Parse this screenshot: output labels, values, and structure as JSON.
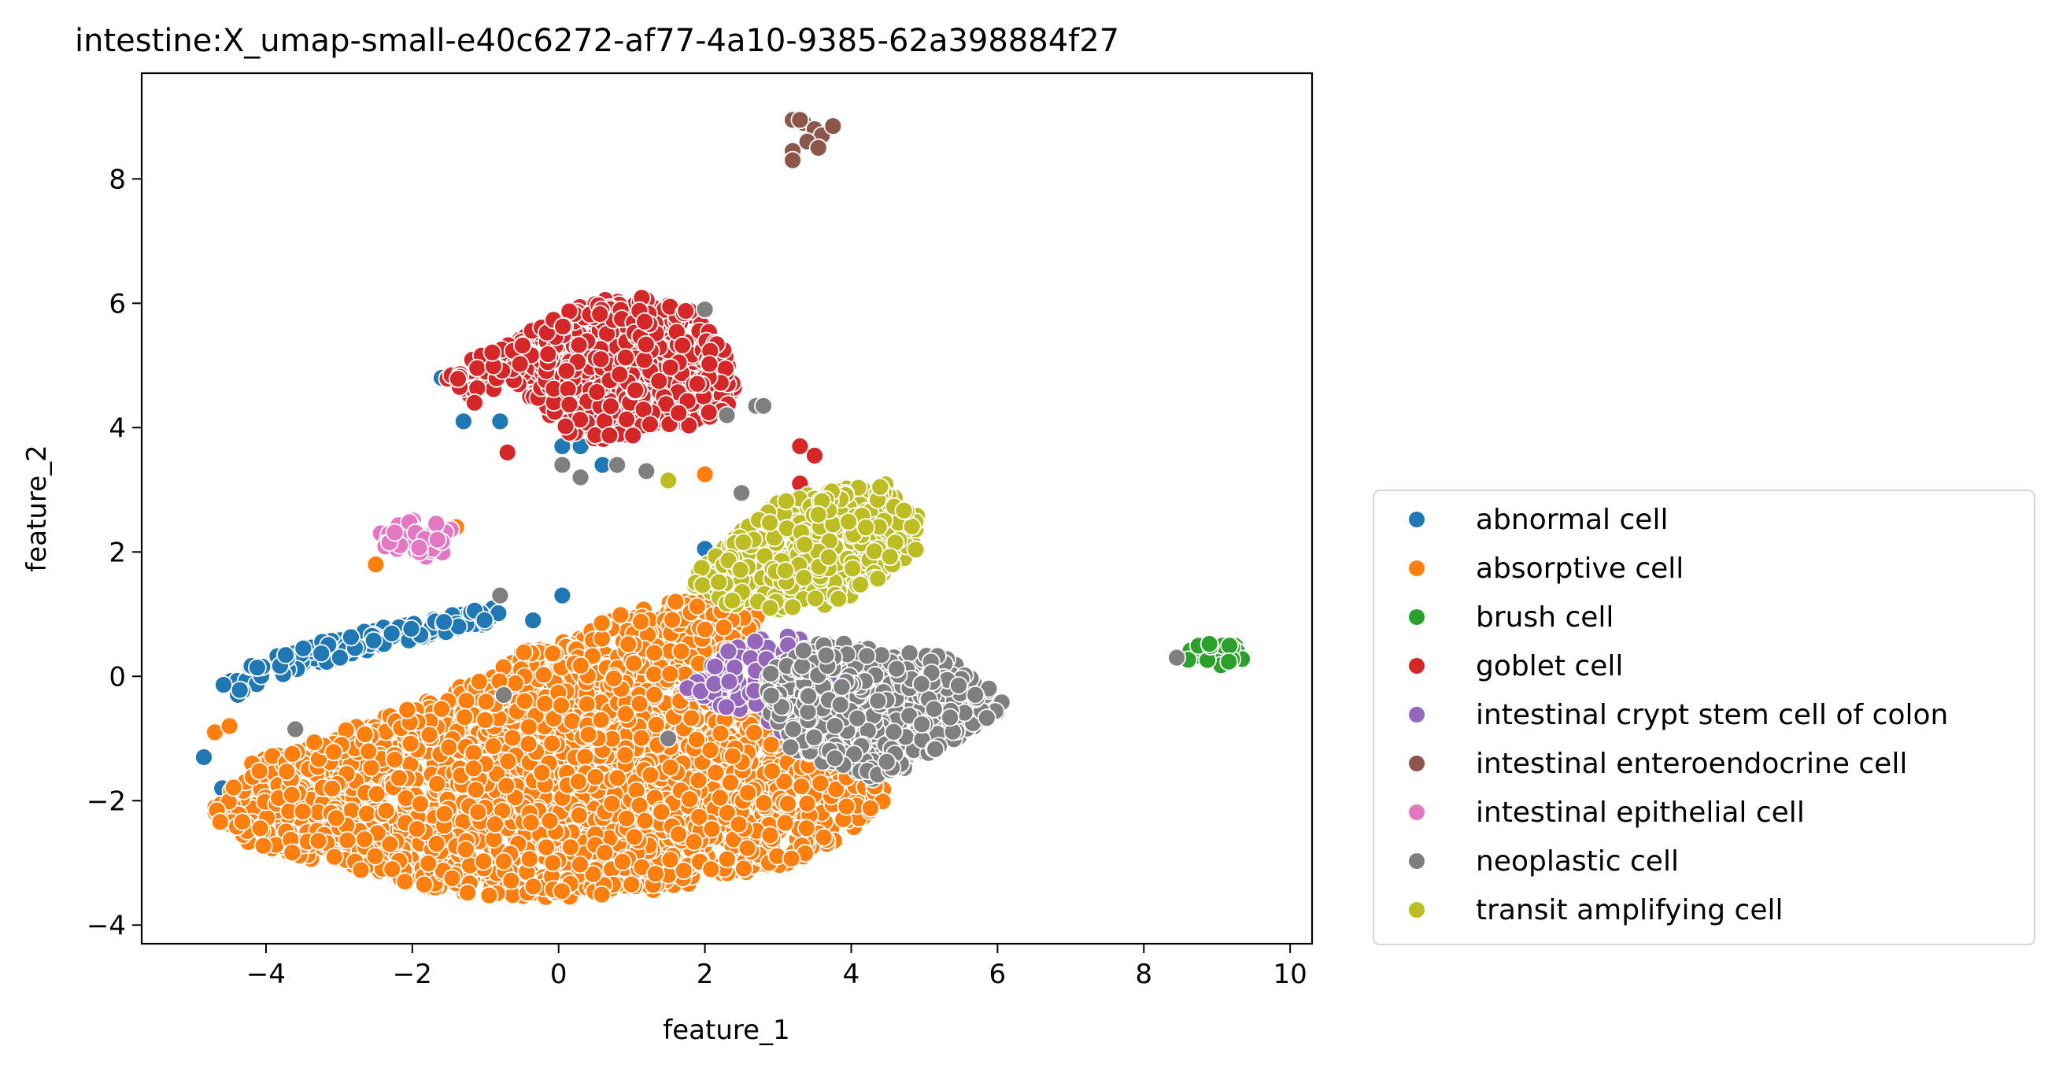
{
  "chart_data": {
    "type": "scatter",
    "title": "intestine:X_umap-small-e40c6272-af77-4a10-9385-62a398884f27",
    "xlabel": "feature_1",
    "ylabel": "feature_2",
    "xlim": [
      -5.7,
      10.3
    ],
    "ylim": [
      -4.3,
      9.7
    ],
    "xticks": [
      -4,
      -2,
      0,
      2,
      4,
      6,
      8,
      10
    ],
    "xtick_labels": [
      "−4",
      "−2",
      "0",
      "2",
      "4",
      "6",
      "8",
      "10"
    ],
    "yticks": [
      -4,
      -2,
      0,
      2,
      4,
      6,
      8
    ],
    "ytick_labels": [
      "−4",
      "−2",
      "0",
      "2",
      "4",
      "6",
      "8"
    ],
    "grid": false,
    "legend_position": "outside-right",
    "series": [
      {
        "name": "abnormal cell",
        "color": "#1f77b4",
        "regions": [
          {
            "kind": "arc",
            "n": 140,
            "x": [
              -4.7,
              -0.8
            ],
            "y0": -0.6,
            "y1": 1.0,
            "spread": 0.35
          },
          {
            "kind": "points",
            "points": [
              [
                -4.85,
                -1.3
              ],
              [
                -4.6,
                -1.8
              ],
              [
                -1.3,
                4.1
              ],
              [
                -0.8,
                4.1
              ],
              [
                -1.6,
                4.8
              ],
              [
                0.05,
                3.7
              ],
              [
                0.3,
                3.7
              ],
              [
                0.05,
                1.3
              ],
              [
                -0.35,
                0.9
              ],
              [
                2.0,
                2.05
              ],
              [
                0.6,
                3.4
              ]
            ]
          }
        ]
      },
      {
        "name": "absorptive cell",
        "color": "#ff7f0e",
        "regions": [
          {
            "kind": "poly",
            "n": 2400,
            "poly": [
              [
                -4.7,
                -2.0
              ],
              [
                -4.2,
                -1.4
              ],
              [
                -3.0,
                -0.9
              ],
              [
                -2.0,
                -0.5
              ],
              [
                -1.0,
                0.0
              ],
              [
                -0.6,
                0.4
              ],
              [
                0.2,
                0.6
              ],
              [
                0.8,
                1.0
              ],
              [
                1.8,
                1.25
              ],
              [
                2.5,
                1.3
              ],
              [
                2.8,
                0.9
              ],
              [
                2.4,
                0.3
              ],
              [
                2.5,
                -0.5
              ],
              [
                3.2,
                -0.9
              ],
              [
                3.7,
                -1.2
              ],
              [
                4.3,
                -1.6
              ],
              [
                4.6,
                -1.9
              ],
              [
                4.0,
                -2.5
              ],
              [
                3.2,
                -3.0
              ],
              [
                2.0,
                -3.3
              ],
              [
                0.8,
                -3.55
              ],
              [
                -0.5,
                -3.6
              ],
              [
                -1.8,
                -3.4
              ],
              [
                -3.2,
                -3.0
              ],
              [
                -4.2,
                -2.7
              ],
              [
                -4.7,
                -2.3
              ]
            ]
          },
          {
            "kind": "points",
            "points": [
              [
                2.0,
                3.25
              ],
              [
                -1.4,
                2.4
              ],
              [
                -2.5,
                1.8
              ],
              [
                3.6,
                1.5
              ],
              [
                -4.7,
                -0.9
              ],
              [
                -4.5,
                -0.8
              ],
              [
                1.6,
                1.2
              ]
            ]
          }
        ]
      },
      {
        "name": "brush cell",
        "color": "#2ca02c",
        "regions": [
          {
            "kind": "blob",
            "n": 24,
            "cx": 9.0,
            "cy": 0.35,
            "rx": 0.45,
            "ry": 0.18
          }
        ]
      },
      {
        "name": "goblet cell",
        "color": "#d62728",
        "regions": [
          {
            "kind": "poly",
            "n": 650,
            "poly": [
              [
                -1.6,
                4.8
              ],
              [
                -1.2,
                5.1
              ],
              [
                -0.6,
                5.4
              ],
              [
                0.0,
                5.8
              ],
              [
                0.5,
                6.05
              ],
              [
                1.2,
                6.1
              ],
              [
                1.8,
                5.9
              ],
              [
                2.3,
                5.2
              ],
              [
                2.5,
                4.7
              ],
              [
                2.3,
                4.3
              ],
              [
                1.8,
                4.0
              ],
              [
                1.2,
                3.9
              ],
              [
                0.6,
                3.8
              ],
              [
                0.1,
                3.9
              ],
              [
                -0.2,
                4.3
              ],
              [
                -0.6,
                4.7
              ],
              [
                -1.3,
                4.4
              ]
            ]
          },
          {
            "kind": "points",
            "points": [
              [
                -1.15,
                4.4
              ],
              [
                -0.7,
                3.6
              ],
              [
                3.3,
                3.7
              ],
              [
                3.5,
                3.55
              ],
              [
                3.3,
                3.1
              ]
            ]
          }
        ]
      },
      {
        "name": "intestinal crypt stem cell of colon",
        "color": "#9467bd",
        "regions": [
          {
            "kind": "poly",
            "n": 130,
            "poly": [
              [
                1.7,
                -0.2
              ],
              [
                2.2,
                0.45
              ],
              [
                2.9,
                0.7
              ],
              [
                3.4,
                0.6
              ],
              [
                3.9,
                0.3
              ],
              [
                4.0,
                -0.3
              ],
              [
                3.8,
                -0.9
              ],
              [
                3.3,
                -1.1
              ],
              [
                2.6,
                -0.6
              ],
              [
                2.0,
                -0.5
              ]
            ]
          },
          {
            "kind": "points",
            "points": [
              [
                3.7,
                1.2
              ],
              [
                3.6,
                -1.35
              ]
            ]
          }
        ]
      },
      {
        "name": "intestinal enteroendocrine cell",
        "color": "#8c564b",
        "regions": [
          {
            "kind": "points",
            "points": [
              [
                3.2,
                8.95
              ],
              [
                3.35,
                8.9
              ],
              [
                3.5,
                8.8
              ],
              [
                3.6,
                8.7
              ],
              [
                3.75,
                8.85
              ],
              [
                3.4,
                8.6
              ],
              [
                3.55,
                8.5
              ],
              [
                3.2,
                8.45
              ],
              [
                3.2,
                8.3
              ],
              [
                3.3,
                8.95
              ]
            ]
          }
        ]
      },
      {
        "name": "intestinal epithelial cell",
        "color": "#e377c2",
        "regions": [
          {
            "kind": "blob",
            "n": 45,
            "cx": -1.95,
            "cy": 2.2,
            "rx": 0.55,
            "ry": 0.32
          }
        ]
      },
      {
        "name": "neoplastic cell",
        "color": "#7f7f7f",
        "regions": [
          {
            "kind": "poly",
            "n": 600,
            "poly": [
              [
                3.0,
                0.2
              ],
              [
                3.6,
                0.6
              ],
              [
                4.1,
                0.5
              ],
              [
                4.7,
                0.4
              ],
              [
                5.4,
                0.3
              ],
              [
                5.9,
                -0.1
              ],
              [
                6.1,
                -0.5
              ],
              [
                5.6,
                -0.9
              ],
              [
                5.0,
                -1.3
              ],
              [
                4.4,
                -1.7
              ],
              [
                3.8,
                -1.5
              ],
              [
                3.2,
                -1.2
              ],
              [
                2.9,
                -0.6
              ],
              [
                2.8,
                -0.1
              ]
            ]
          },
          {
            "kind": "points",
            "points": [
              [
                2.0,
                5.9
              ],
              [
                2.7,
                4.35
              ],
              [
                2.8,
                4.35
              ],
              [
                0.05,
                3.4
              ],
              [
                0.3,
                3.2
              ],
              [
                0.8,
                3.4
              ],
              [
                1.2,
                3.3
              ],
              [
                2.5,
                2.95
              ],
              [
                -0.8,
                1.3
              ],
              [
                -0.75,
                -0.3
              ],
              [
                -3.6,
                -0.85
              ],
              [
                8.45,
                0.3
              ],
              [
                1.5,
                -1.0
              ],
              [
                2.3,
                4.2
              ]
            ]
          }
        ]
      },
      {
        "name": "transit amplifying cell",
        "color": "#bcbd22",
        "regions": [
          {
            "kind": "poly",
            "n": 420,
            "poly": [
              [
                1.8,
                1.6
              ],
              [
                2.4,
                2.25
              ],
              [
                3.0,
                2.8
              ],
              [
                3.7,
                3.0
              ],
              [
                4.5,
                3.1
              ],
              [
                4.9,
                2.6
              ],
              [
                4.9,
                2.0
              ],
              [
                4.4,
                1.6
              ],
              [
                3.9,
                1.2
              ],
              [
                3.2,
                1.0
              ],
              [
                2.5,
                1.1
              ],
              [
                1.9,
                1.3
              ]
            ]
          },
          {
            "kind": "points",
            "points": [
              [
                1.5,
                3.15
              ],
              [
                3.55,
                2.6
              ],
              [
                3.1,
                1.7
              ]
            ]
          }
        ]
      }
    ]
  },
  "legend": {
    "items": [
      {
        "label": "abnormal cell",
        "color": "#1f77b4"
      },
      {
        "label": "absorptive cell",
        "color": "#ff7f0e"
      },
      {
        "label": "brush cell",
        "color": "#2ca02c"
      },
      {
        "label": "goblet cell",
        "color": "#d62728"
      },
      {
        "label": "intestinal crypt stem cell of colon",
        "color": "#9467bd"
      },
      {
        "label": "intestinal enteroendocrine cell",
        "color": "#8c564b"
      },
      {
        "label": "intestinal epithelial cell",
        "color": "#e377c2"
      },
      {
        "label": "neoplastic cell",
        "color": "#7f7f7f"
      },
      {
        "label": "transit amplifying cell",
        "color": "#bcbd22"
      }
    ]
  }
}
